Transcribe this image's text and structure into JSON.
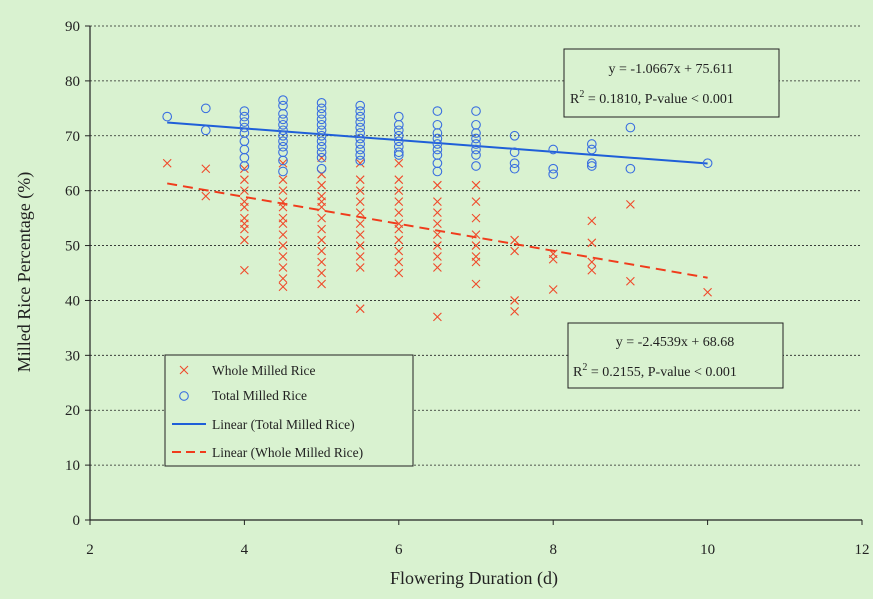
{
  "chart_data": {
    "type": "scatter",
    "xlabel": "Flowering Duration (d)",
    "ylabel": "Milled Rice Percentage (%)",
    "xlim": [
      2,
      12
    ],
    "ylim": [
      0,
      90
    ],
    "x_ticks": [
      2,
      4,
      6,
      8,
      10,
      12
    ],
    "y_ticks": [
      0,
      10,
      20,
      30,
      40,
      50,
      60,
      70,
      80,
      90
    ],
    "grid": "horizontal dotted",
    "legend_position": "bottom-left",
    "colors": {
      "total": "#3a6fe0",
      "whole": "#f04a2a",
      "total_line": "#1f5fd8",
      "whole_line": "#f03c1c"
    },
    "series": [
      {
        "name": "Whole Milled Rice",
        "marker": "x",
        "points": [
          [
            3,
            65
          ],
          [
            3.5,
            64
          ],
          [
            3.5,
            59
          ],
          [
            4,
            64
          ],
          [
            4,
            62
          ],
          [
            4,
            60
          ],
          [
            4,
            58
          ],
          [
            4,
            57
          ],
          [
            4,
            55
          ],
          [
            4,
            54
          ],
          [
            4,
            53
          ],
          [
            4,
            51
          ],
          [
            4,
            45.5
          ],
          [
            4.5,
            65
          ],
          [
            4.5,
            62
          ],
          [
            4.5,
            60
          ],
          [
            4.5,
            58
          ],
          [
            4.5,
            57
          ],
          [
            4.5,
            55
          ],
          [
            4.5,
            54
          ],
          [
            4.5,
            52
          ],
          [
            4.5,
            50
          ],
          [
            4.5,
            48
          ],
          [
            4.5,
            46
          ],
          [
            4.5,
            44
          ],
          [
            4.5,
            42.5
          ],
          [
            5,
            66
          ],
          [
            5,
            63
          ],
          [
            5,
            61
          ],
          [
            5,
            59
          ],
          [
            5,
            58
          ],
          [
            5,
            57
          ],
          [
            5,
            55
          ],
          [
            5,
            53
          ],
          [
            5,
            51
          ],
          [
            5,
            49
          ],
          [
            5,
            47
          ],
          [
            5,
            45
          ],
          [
            5,
            43
          ],
          [
            5.5,
            65
          ],
          [
            5.5,
            62
          ],
          [
            5.5,
            60
          ],
          [
            5.5,
            58
          ],
          [
            5.5,
            56
          ],
          [
            5.5,
            54
          ],
          [
            5.5,
            52
          ],
          [
            5.5,
            50
          ],
          [
            5.5,
            48
          ],
          [
            5.5,
            46
          ],
          [
            5.5,
            38.5
          ],
          [
            6,
            65
          ],
          [
            6,
            62
          ],
          [
            6,
            60
          ],
          [
            6,
            58
          ],
          [
            6,
            56
          ],
          [
            6,
            54
          ],
          [
            6,
            53
          ],
          [
            6,
            51
          ],
          [
            6,
            49
          ],
          [
            6,
            47
          ],
          [
            6,
            45
          ],
          [
            6.5,
            61
          ],
          [
            6.5,
            58
          ],
          [
            6.5,
            56
          ],
          [
            6.5,
            54
          ],
          [
            6.5,
            52
          ],
          [
            6.5,
            50
          ],
          [
            6.5,
            48
          ],
          [
            6.5,
            46
          ],
          [
            6.5,
            37
          ],
          [
            7,
            61
          ],
          [
            7,
            58
          ],
          [
            7,
            55
          ],
          [
            7,
            52
          ],
          [
            7,
            50
          ],
          [
            7,
            48
          ],
          [
            7,
            47
          ],
          [
            7,
            43
          ],
          [
            7.5,
            51
          ],
          [
            7.5,
            49
          ],
          [
            7.5,
            40
          ],
          [
            7.5,
            38
          ],
          [
            8,
            48.5
          ],
          [
            8,
            47.5
          ],
          [
            8,
            42
          ],
          [
            8.5,
            54.5
          ],
          [
            8.5,
            50.5
          ],
          [
            8.5,
            47
          ],
          [
            8.5,
            45.5
          ],
          [
            9,
            57.5
          ],
          [
            9,
            43.5
          ],
          [
            10,
            41.5
          ]
        ]
      },
      {
        "name": "Total Milled Rice",
        "marker": "circle",
        "points": [
          [
            3,
            73.5
          ],
          [
            3.5,
            75
          ],
          [
            3.5,
            71
          ],
          [
            4,
            74.5
          ],
          [
            4,
            73.5
          ],
          [
            4,
            72.5
          ],
          [
            4,
            71.5
          ],
          [
            4,
            70.5
          ],
          [
            4,
            69
          ],
          [
            4,
            67.5
          ],
          [
            4,
            66
          ],
          [
            4,
            64.5
          ],
          [
            4.5,
            76.5
          ],
          [
            4.5,
            75.5
          ],
          [
            4.5,
            74
          ],
          [
            4.5,
            73
          ],
          [
            4.5,
            72
          ],
          [
            4.5,
            71
          ],
          [
            4.5,
            70
          ],
          [
            4.5,
            69
          ],
          [
            4.5,
            68
          ],
          [
            4.5,
            67
          ],
          [
            4.5,
            65.5
          ],
          [
            4.5,
            63.5
          ],
          [
            5,
            76
          ],
          [
            5,
            75
          ],
          [
            5,
            74
          ],
          [
            5,
            73
          ],
          [
            5,
            72
          ],
          [
            5,
            71
          ],
          [
            5,
            70
          ],
          [
            5,
            69
          ],
          [
            5,
            68
          ],
          [
            5,
            67
          ],
          [
            5,
            66
          ],
          [
            5,
            64
          ],
          [
            5.5,
            75.5
          ],
          [
            5.5,
            74.5
          ],
          [
            5.5,
            73.5
          ],
          [
            5.5,
            72.5
          ],
          [
            5.5,
            71.5
          ],
          [
            5.5,
            70.5
          ],
          [
            5.5,
            69.5
          ],
          [
            5.5,
            68.5
          ],
          [
            5.5,
            67.5
          ],
          [
            5.5,
            66.5
          ],
          [
            5.5,
            65.5
          ],
          [
            6,
            73.5
          ],
          [
            6,
            72
          ],
          [
            6,
            71
          ],
          [
            6,
            70
          ],
          [
            6,
            69
          ],
          [
            6,
            68
          ],
          [
            6,
            67
          ],
          [
            6,
            66.5
          ],
          [
            6.5,
            74.5
          ],
          [
            6.5,
            72
          ],
          [
            6.5,
            70.5
          ],
          [
            6.5,
            69.5
          ],
          [
            6.5,
            68.5
          ],
          [
            6.5,
            67.5
          ],
          [
            6.5,
            66.5
          ],
          [
            6.5,
            65
          ],
          [
            6.5,
            63.5
          ],
          [
            7,
            74.5
          ],
          [
            7,
            72
          ],
          [
            7,
            70.5
          ],
          [
            7,
            69.5
          ],
          [
            7,
            68.5
          ],
          [
            7,
            67.5
          ],
          [
            7,
            66.5
          ],
          [
            7,
            64.5
          ],
          [
            7.5,
            70
          ],
          [
            7.5,
            67
          ],
          [
            7.5,
            65
          ],
          [
            7.5,
            64
          ],
          [
            8,
            67.5
          ],
          [
            8,
            64
          ],
          [
            8,
            63
          ],
          [
            8.5,
            68.5
          ],
          [
            8.5,
            67.5
          ],
          [
            8.5,
            65
          ],
          [
            8.5,
            64.5
          ],
          [
            9,
            71.5
          ],
          [
            9,
            64
          ],
          [
            10,
            65
          ]
        ]
      }
    ],
    "trendlines": [
      {
        "name": "Linear (Total Milled Rice)",
        "style": "solid",
        "slope": -1.0667,
        "intercept": 75.611,
        "x_range": [
          3,
          10
        ]
      },
      {
        "name": "Linear (Whole Milled Rice)",
        "style": "dashed",
        "slope": -2.4539,
        "intercept": 68.68,
        "x_range": [
          3,
          10
        ]
      }
    ],
    "annotations": {
      "total_eq": "y = -1.0667x + 75.611",
      "total_r2_prefix": "R",
      "total_r2_suffix": " = 0.1810, P-value < 0.001",
      "whole_eq": "y = -2.4539x + 68.68",
      "whole_r2_prefix": "R",
      "whole_r2_suffix": " = 0.2155, P-value < 0.001",
      "superscript": "2"
    },
    "legend": {
      "items": [
        "Whole Milled Rice",
        "Total Milled Rice",
        "Linear (Total Milled Rice)",
        "Linear (Whole Milled Rice)"
      ]
    }
  }
}
